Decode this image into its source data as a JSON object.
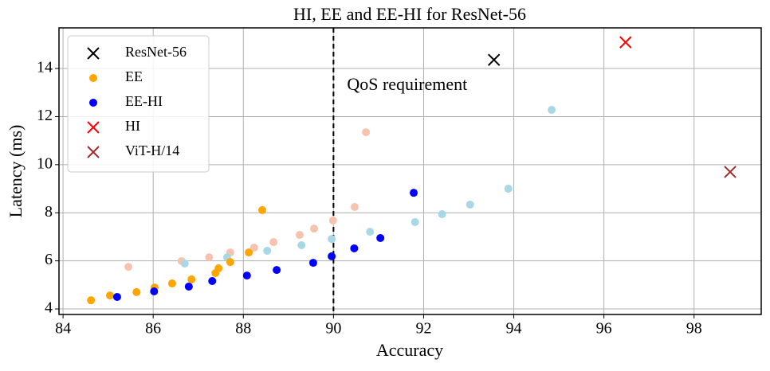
{
  "chart_data": {
    "type": "scatter",
    "title": "HI, EE and EE-HI for ResNet-56",
    "xlabel": "Accuracy",
    "ylabel": "Latency (ms)",
    "xlim": [
      83.91,
      99.49
    ],
    "ylim": [
      3.77,
      15.69
    ],
    "xticks": [
      84,
      86,
      88,
      90,
      92,
      94,
      96,
      98
    ],
    "yticks": [
      4,
      6,
      8,
      10,
      12,
      14
    ],
    "grid": true,
    "legend": "upper left",
    "vline": 90,
    "annotations": [
      {
        "text": "QoS requirement",
        "x": 90.3,
        "y": 13.27
      }
    ],
    "series": [
      {
        "color": "#f7c3b0",
        "marker": "o",
        "x": [
          85.45,
          86.63,
          87.24,
          87.71,
          88.24,
          88.67,
          89.25,
          89.57,
          89.99,
          90.47,
          90.72
        ],
        "values": [
          5.75,
          5.99,
          6.15,
          6.35,
          6.55,
          6.78,
          7.08,
          7.34,
          7.68,
          8.24,
          11.35
        ]
      },
      {
        "color": "#a8d8e6",
        "marker": "o",
        "x": [
          86.7,
          87.64,
          88.53,
          89.29,
          89.96,
          90.81,
          91.81,
          92.41,
          93.03,
          93.88,
          94.84
        ],
        "values": [
          5.89,
          6.15,
          6.42,
          6.65,
          6.91,
          7.21,
          7.61,
          7.94,
          8.34,
          9.0,
          12.28
        ]
      },
      {
        "name": "ResNet-56",
        "color": "#000000",
        "marker": "x",
        "x": [
          93.56
        ],
        "values": [
          14.36
        ]
      },
      {
        "name": "EE",
        "color": "#ffa500",
        "marker": "o",
        "x": [
          84.62,
          85.04,
          85.63,
          86.03,
          86.42,
          86.85,
          87.38,
          87.45,
          87.71,
          88.12,
          88.42
        ],
        "values": [
          4.36,
          4.56,
          4.7,
          4.89,
          5.06,
          5.23,
          5.49,
          5.69,
          5.95,
          6.35,
          8.11
        ]
      },
      {
        "name": "EE-HI",
        "color": "#0000ff",
        "marker": "o",
        "x": [
          85.2,
          86.02,
          86.79,
          87.31,
          88.08,
          88.74,
          89.55,
          89.96,
          90.46,
          91.04,
          91.78
        ],
        "values": [
          4.5,
          4.73,
          4.93,
          5.16,
          5.39,
          5.62,
          5.92,
          6.19,
          6.52,
          6.95,
          8.83
        ]
      },
      {
        "name": "HI",
        "color": "#ff0000",
        "marker": "x",
        "x": [
          96.48
        ],
        "values": [
          15.09
        ]
      },
      {
        "name": "ViT-H/14",
        "color": "#a52a2a",
        "marker": "x",
        "x": [
          98.8
        ],
        "values": [
          9.7
        ]
      }
    ]
  }
}
